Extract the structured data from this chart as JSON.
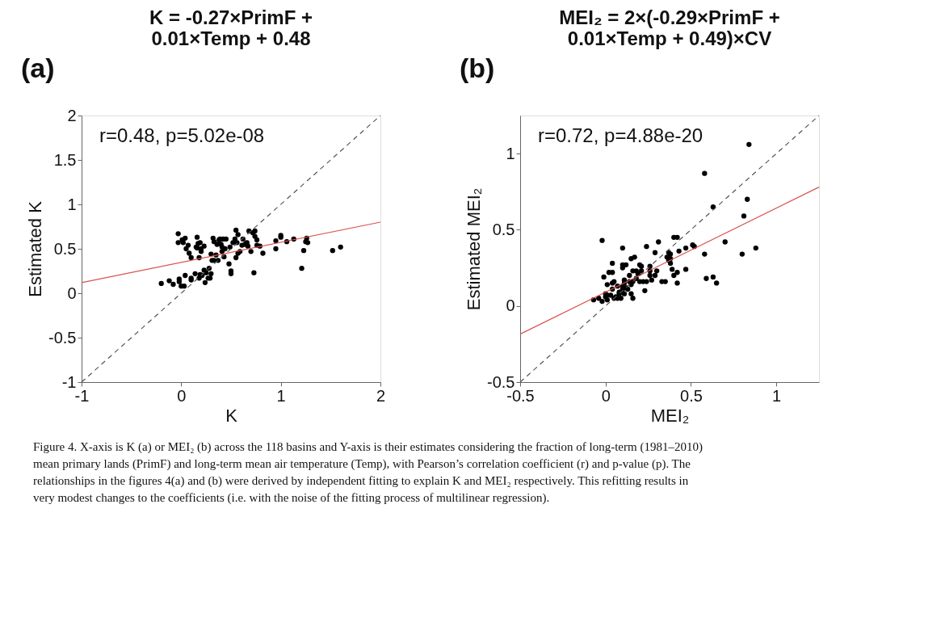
{
  "chart_data": [
    {
      "type": "scatter",
      "title": "K = -0.27×PrimF + 0.01×Temp + 0.48",
      "xlabel": "K",
      "ylabel": "Estimated K",
      "xlim": [
        -1,
        2
      ],
      "ylim": [
        -1,
        2
      ],
      "xticks": [
        -1,
        0,
        1,
        2
      ],
      "yticks": [
        -1,
        -0.5,
        0,
        0.5,
        1,
        1.5,
        2
      ],
      "grid": false,
      "annotations": [
        "(a)",
        "r=0.48, p=5.02e-08"
      ],
      "series": [
        {
          "type": "scatter",
          "color": "#000000",
          "marker": "circle",
          "x": [
            -0.2,
            -0.12,
            -0.08,
            -0.03,
            -0.03,
            -0.02,
            -0.02,
            0.0,
            0.03,
            0.01,
            0.02,
            0.04,
            0.04,
            0.05,
            0.07,
            0.08,
            0.1,
            0.1,
            0.1,
            0.14,
            0.16,
            0.15,
            0.16,
            0.17,
            0.18,
            0.19,
            0.19,
            0.2,
            0.2,
            0.18,
            0.23,
            0.21,
            0.23,
            0.24,
            0.25,
            0.27,
            0.28,
            0.29,
            0.3,
            0.3,
            0.31,
            0.32,
            0.33,
            0.33,
            0.35,
            0.36,
            0.37,
            0.38,
            0.39,
            0.4,
            0.41,
            0.41,
            0.42,
            0.44,
            0.43,
            0.45,
            0.48,
            0.49,
            0.5,
            0.5,
            0.52,
            0.54,
            0.55,
            0.55,
            0.57,
            0.56,
            0.57,
            0.59,
            0.61,
            0.62,
            0.64,
            0.66,
            0.68,
            0.67,
            0.7,
            0.72,
            0.74,
            0.74,
            0.73,
            0.76,
            0.76,
            0.79,
            0.82,
            0.95,
            0.95,
            1.0,
            1.0,
            1.06,
            1.13,
            1.21,
            1.23,
            1.25,
            1.26,
            1.27,
            1.52,
            1.6
          ],
          "values": [
            0.11,
            0.14,
            0.1,
            0.67,
            0.57,
            0.13,
            0.16,
            0.08,
            0.08,
            0.6,
            0.57,
            0.62,
            0.2,
            0.5,
            0.54,
            0.45,
            0.4,
            0.17,
            0.15,
            0.22,
            0.63,
            0.52,
            0.51,
            0.56,
            0.17,
            0.21,
            0.57,
            0.5,
            0.47,
            0.4,
            0.53,
            0.2,
            0.26,
            0.12,
            0.23,
            0.17,
            0.28,
            0.17,
            0.22,
            0.44,
            0.37,
            0.62,
            0.58,
            0.37,
            0.43,
            0.55,
            0.37,
            0.6,
            0.61,
            0.55,
            0.47,
            0.52,
            0.61,
            0.5,
            0.41,
            0.61,
            0.33,
            0.52,
            0.25,
            0.22,
            0.57,
            0.61,
            0.4,
            0.71,
            0.66,
            0.57,
            0.45,
            0.47,
            0.54,
            0.61,
            0.55,
            0.57,
            0.7,
            0.53,
            0.47,
            0.68,
            0.7,
            0.64,
            0.23,
            0.6,
            0.54,
            0.53,
            0.45,
            0.59,
            0.5,
            0.65,
            0.63,
            0.58,
            0.61,
            0.28,
            0.48,
            0.58,
            0.62,
            0.57,
            0.48,
            0.52
          ]
        },
        {
          "type": "line",
          "color": "#d9534f",
          "line_style": "solid",
          "x": [
            -1,
            2
          ],
          "values": [
            0.12,
            0.8
          ]
        },
        {
          "type": "line",
          "color": "#555555",
          "line_style": "dashed",
          "x": [
            -1,
            2
          ],
          "values": [
            -1,
            2
          ]
        }
      ]
    },
    {
      "type": "scatter",
      "title": "MEI₂ = 2×(-0.29×PrimF + 0.01×Temp + 0.49)×CV",
      "xlabel": "MEI₂",
      "ylabel": "Estimated MEI₂",
      "xlim": [
        -0.5,
        1.25
      ],
      "ylim": [
        -0.5,
        1.25
      ],
      "xticks": [
        -0.5,
        0,
        0.5,
        1
      ],
      "yticks": [
        -0.5,
        0,
        0.5,
        1
      ],
      "grid": false,
      "annotations": [
        "(b)",
        "r=0.72, p=4.88e-20",
        "Figure 4. X-axis is K (a) or MEI₂ (b) across the 118 basins and Y-axis is their estimates considering the fraction of long-term (1981–2010) mean primary lands (PrimF) and long-term mean air temperature (Temp), with Pearson’s correlation coefficient (r) and p-value (p). The relationships in the figures 4(a) and (b) were derived by independent fitting to explain K and MEI₂ respectively. This refitting results in very modest changes to the coefficients (i.e. with the noise of the fitting process of multilinear regression)."
      ],
      "series": [
        {
          "type": "scatter",
          "color": "#000000",
          "marker": "circle",
          "x": [
            0.84,
            0.58,
            0.63,
            0.83,
            0.81,
            0.7,
            0.58,
            0.8,
            0.88,
            0.59,
            0.63,
            0.65,
            -0.02,
            -0.07,
            -0.04,
            -0.02,
            -0.01,
            0.01,
            0.0,
            0.0,
            0.01,
            0.01,
            0.02,
            0.04,
            0.04,
            0.04,
            0.05,
            0.04,
            0.03,
            0.05,
            0.06,
            0.07,
            0.07,
            0.08,
            0.08,
            0.09,
            0.09,
            0.1,
            0.1,
            0.1,
            0.12,
            0.1,
            0.1,
            0.11,
            0.11,
            0.12,
            0.13,
            0.11,
            0.14,
            0.15,
            0.15,
            0.14,
            0.15,
            0.16,
            0.16,
            0.16,
            0.17,
            0.18,
            0.18,
            0.19,
            0.2,
            0.2,
            0.21,
            0.21,
            0.22,
            0.23,
            0.24,
            0.24,
            0.26,
            0.26,
            0.26,
            0.27,
            0.29,
            0.29,
            0.3,
            0.31,
            0.33,
            0.35,
            0.37,
            0.38,
            0.36,
            0.37,
            0.38,
            0.38,
            0.39,
            0.4,
            0.42,
            0.4,
            0.42,
            0.42,
            0.43,
            0.47,
            0.47,
            0.51,
            0.52
          ],
          "values": [
            1.06,
            0.87,
            0.65,
            0.7,
            0.59,
            0.42,
            0.34,
            0.34,
            0.38,
            0.18,
            0.19,
            0.15,
            0.43,
            0.04,
            0.05,
            0.03,
            0.19,
            0.14,
            0.08,
            0.06,
            0.07,
            0.04,
            0.22,
            0.28,
            0.22,
            0.15,
            0.16,
            0.11,
            0.07,
            0.05,
            0.06,
            0.13,
            0.05,
            0.09,
            0.08,
            0.09,
            0.05,
            0.38,
            0.27,
            0.25,
            0.27,
            0.13,
            0.11,
            0.17,
            0.15,
            0.12,
            0.11,
            0.08,
            0.16,
            0.08,
            0.14,
            0.2,
            0.31,
            0.05,
            0.16,
            0.23,
            0.32,
            0.18,
            0.23,
            0.21,
            0.16,
            0.27,
            0.26,
            0.23,
            0.16,
            0.1,
            0.39,
            0.16,
            0.26,
            0.23,
            0.2,
            0.17,
            0.2,
            0.35,
            0.23,
            0.42,
            0.16,
            0.16,
            0.35,
            0.34,
            0.32,
            0.3,
            0.28,
            0.31,
            0.24,
            0.45,
            0.45,
            0.2,
            0.22,
            0.15,
            0.36,
            0.24,
            0.38,
            0.4,
            0.39
          ]
        },
        {
          "type": "line",
          "color": "#d9534f",
          "line_style": "solid",
          "x": [
            -0.5,
            1.25
          ],
          "values": [
            -0.185,
            0.78
          ]
        },
        {
          "type": "line",
          "color": "#555555",
          "line_style": "dashed",
          "x": [
            -0.5,
            1.25
          ],
          "values": [
            -0.5,
            1.25
          ]
        }
      ]
    }
  ]
}
